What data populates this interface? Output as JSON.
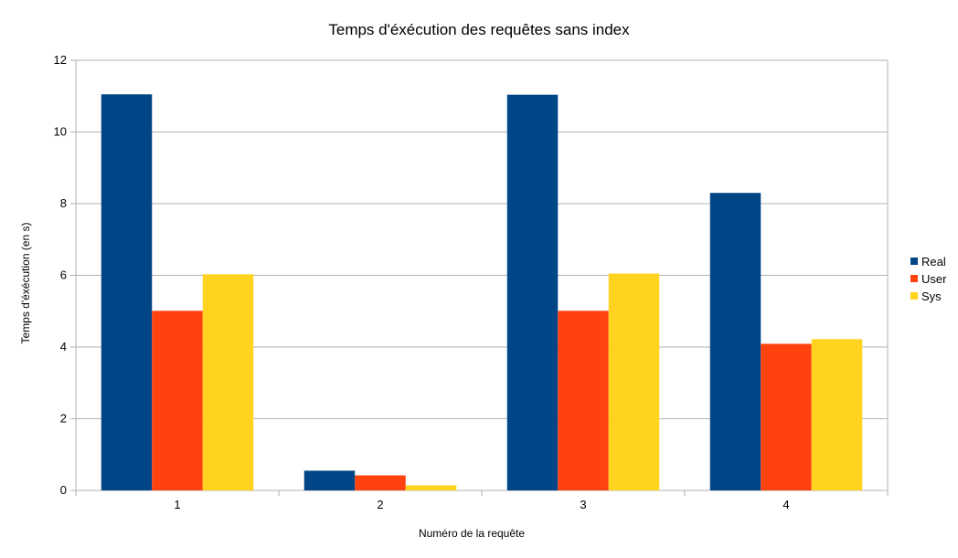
{
  "chart_data": {
    "type": "bar",
    "title": "Temps d'éxécution des requêtes sans index",
    "xlabel": "Numéro de la requête",
    "ylabel": "Temps d'éxécution (en s)",
    "categories": [
      "1",
      "2",
      "3",
      "4"
    ],
    "series": [
      {
        "name": "Real",
        "color": "#004586",
        "values": [
          11.05,
          0.55,
          11.04,
          8.3
        ]
      },
      {
        "name": "User",
        "color": "#ff420e",
        "values": [
          5.01,
          0.42,
          5.01,
          4.09
        ]
      },
      {
        "name": "Sys",
        "color": "#ffd320",
        "values": [
          6.03,
          0.14,
          6.05,
          4.22
        ]
      }
    ],
    "ylim": [
      0,
      12
    ],
    "yticks": [
      "0",
      "2",
      "4",
      "6",
      "8",
      "10",
      "12"
    ],
    "grid": true,
    "legend": "right"
  }
}
